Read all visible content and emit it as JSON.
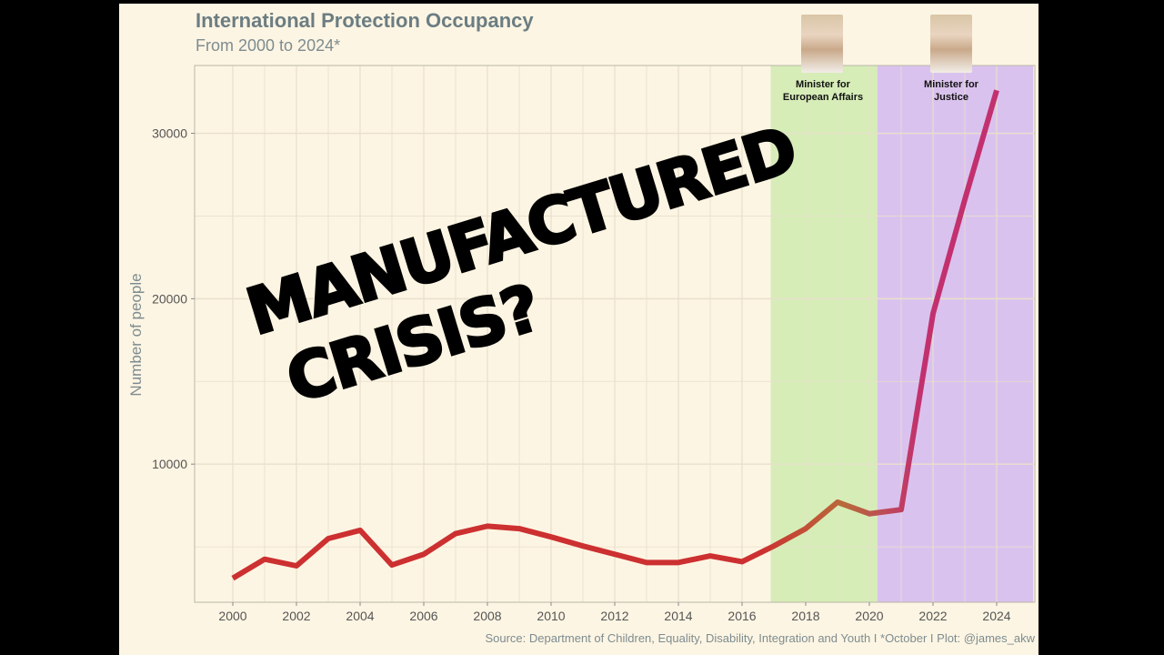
{
  "chart_data": {
    "type": "line",
    "title": "International Protection Occupancy",
    "subtitle": "From 2000 to 2024*",
    "xlabel": "",
    "ylabel": "Number of people",
    "caption": "Source: Department of Children, Equality, Disability, Integration and Youth I *October I Plot: @james_akw",
    "x": [
      2000,
      2001,
      2002,
      2003,
      2004,
      2005,
      2006,
      2007,
      2008,
      2009,
      2010,
      2011,
      2012,
      2013,
      2014,
      2015,
      2016,
      2017,
      2018,
      2019,
      2020,
      2021,
      2022,
      2023,
      2024
    ],
    "values": [
      3100,
      4250,
      3850,
      5500,
      6000,
      3900,
      4550,
      5800,
      6250,
      6100,
      5600,
      5050,
      4550,
      4050,
      4050,
      4450,
      4100,
      5050,
      6100,
      7700,
      7000,
      7250,
      19100,
      26000,
      32600
    ],
    "xlim": [
      1998.8,
      2025.2
    ],
    "ylim": [
      1650,
      34100
    ],
    "xticks": [
      "2000",
      "2002",
      "2004",
      "2006",
      "2008",
      "2010",
      "2012",
      "2014",
      "2016",
      "2018",
      "2020",
      "2022",
      "2024"
    ],
    "yticks": [
      "10000",
      "20000",
      "30000"
    ],
    "grid": true,
    "shaded_periods": [
      {
        "label_line1": "Minister for",
        "label_line2": "European Affairs",
        "start": 2016.9,
        "end": 2020.25,
        "color": "#d4ecb4"
      },
      {
        "label_line1": "Minister for",
        "label_line2": "Justice",
        "start": 2020.25,
        "end": 2025.15,
        "color": "#d8bfee"
      }
    ],
    "line_colors": {
      "start": "#cc3030",
      "mid": "#b86a3a",
      "end": "#c2306e"
    }
  },
  "overlay_text": [
    "MANUFACTURED",
    "CRISIS?"
  ],
  "colors": {
    "background": "#fdf5e3",
    "text": "#6b7d82"
  }
}
